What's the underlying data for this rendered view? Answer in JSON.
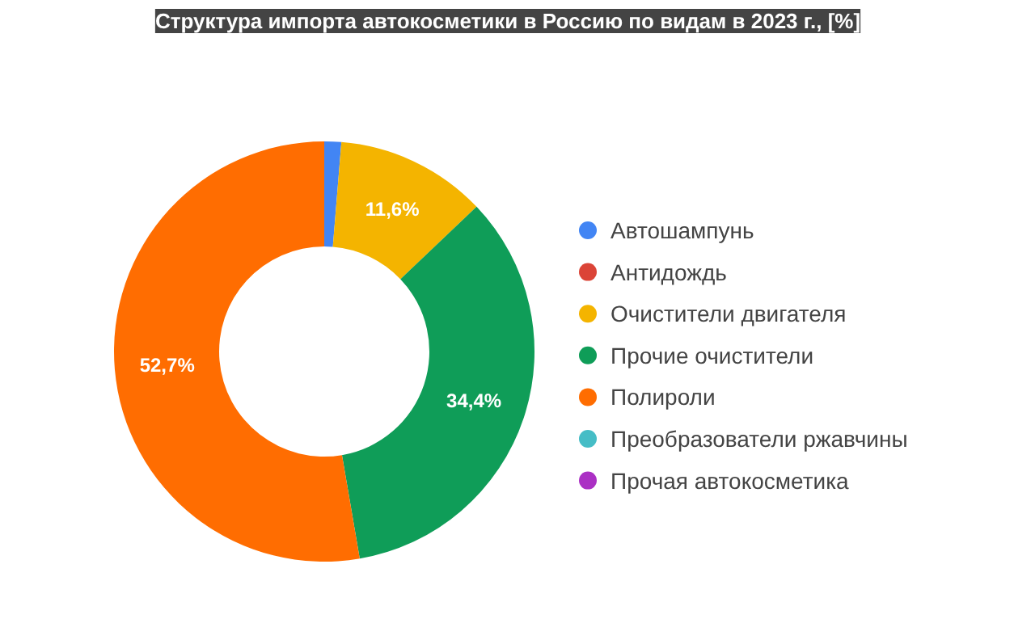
{
  "chart_data": {
    "type": "donut",
    "title": "Структура импорта автокосметики в Россию по видам в 2023 г., [%]",
    "categories": [
      "Автошампунь",
      "Антидождь",
      "Очистители двигателя",
      "Прочие очистители",
      "Полироли",
      "Преобразователи ржавчины",
      "Прочая автокосметика"
    ],
    "values": [
      1.3,
      null,
      11.6,
      34.4,
      52.7,
      null,
      null
    ],
    "colors": [
      "#4285f4",
      "#db4437",
      "#f4b400",
      "#0f9d58",
      "#ff6d01",
      "#46bdc6",
      "#ab30c4"
    ],
    "value_labels": [
      null,
      null,
      "11,6%",
      "34,4%",
      "52,7%",
      null,
      null
    ],
    "legend": "right"
  }
}
